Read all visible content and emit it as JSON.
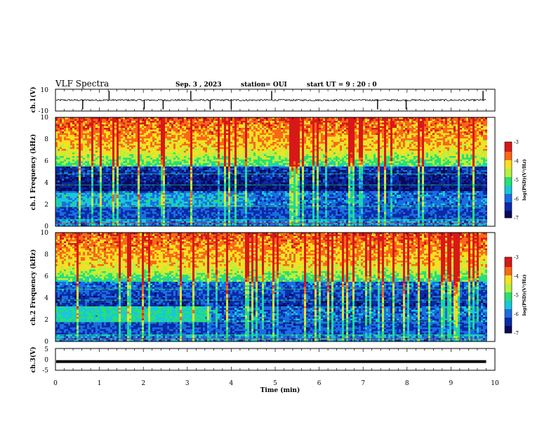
{
  "header": {
    "title": "VLF Spectra",
    "date": "Sep. 3 , 2023",
    "station": "station= OUI",
    "start_ut": "start UT = 9 : 20 : 0"
  },
  "colors": {
    "spectrum": [
      "#0a0a5a",
      "#0a2aa8",
      "#1a6ee0",
      "#18c8d8",
      "#28e070",
      "#b8f040",
      "#f8e020",
      "#f86818",
      "#d81818"
    ]
  },
  "chart_data": [
    {
      "type": "line",
      "panel": "ch1-waveform",
      "ylabel": "ch.1(V)",
      "xlim": [
        0,
        10
      ],
      "ylim": [
        -10,
        10
      ],
      "yticks": [
        10,
        -10
      ],
      "baseline": 0,
      "trace_end_min": 9.8,
      "spike_times_min": [
        0.62,
        1.22,
        2.02,
        2.45,
        3.08,
        3.52,
        4.0,
        4.92,
        7.33,
        7.98,
        9.73
      ]
    },
    {
      "type": "heatmap",
      "panel": "ch1-spectrogram",
      "ylabel": "ch.1 Frequency (kHz)",
      "xlim": [
        0,
        10
      ],
      "ylim": [
        0,
        10
      ],
      "yticks": [
        0,
        2,
        4,
        6,
        8,
        10
      ],
      "data_end_min": 9.8,
      "colorbar": {
        "label": "log(PSD)(V²/Hz)",
        "ticks": [
          -3,
          -4,
          -5,
          -6,
          -7
        ],
        "range": [
          -7,
          -3
        ]
      }
    },
    {
      "type": "heatmap",
      "panel": "ch2-spectrogram",
      "ylabel": "ch.2 Frequency (kHz)",
      "xlim": [
        0,
        10
      ],
      "ylim": [
        0,
        10
      ],
      "yticks": [
        0,
        2,
        4,
        6,
        8,
        10
      ],
      "data_end_min": 9.8,
      "colorbar": {
        "label": "log(PSD)(V²/Hz)",
        "ticks": [
          -3,
          -4,
          -5,
          -6,
          -7
        ],
        "range": [
          -7,
          -3
        ]
      }
    },
    {
      "type": "line",
      "panel": "ch3-waveform",
      "ylabel": "ch.3(V)",
      "xlim": [
        0,
        10
      ],
      "ylim": [
        -5,
        5
      ],
      "yticks": [
        5,
        0,
        -5
      ],
      "level": -1.0,
      "trace_end_min": 9.8
    }
  ],
  "xaxis": {
    "label": "Time (min)",
    "ticks": [
      0,
      1,
      2,
      3,
      4,
      5,
      6,
      7,
      8,
      9,
      10
    ]
  }
}
